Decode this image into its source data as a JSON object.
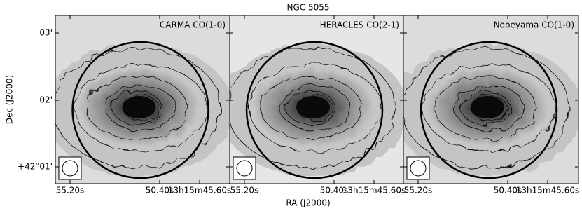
{
  "title": "NGC 5055",
  "panels": [
    {
      "label": "CARMA CO(1-0)"
    },
    {
      "label": "HERACLES CO(2-1)"
    },
    {
      "label": "Nobeyama CO(1-0)"
    }
  ],
  "y_axis": {
    "label": "Dec (J2000)",
    "ticks": [
      "03'",
      "02'",
      "+42°01'"
    ]
  },
  "x_axis": {
    "label": "RA (J2000)",
    "ticks": [
      "55.20s",
      "50.40s",
      "13h15m45.60s"
    ]
  }
}
